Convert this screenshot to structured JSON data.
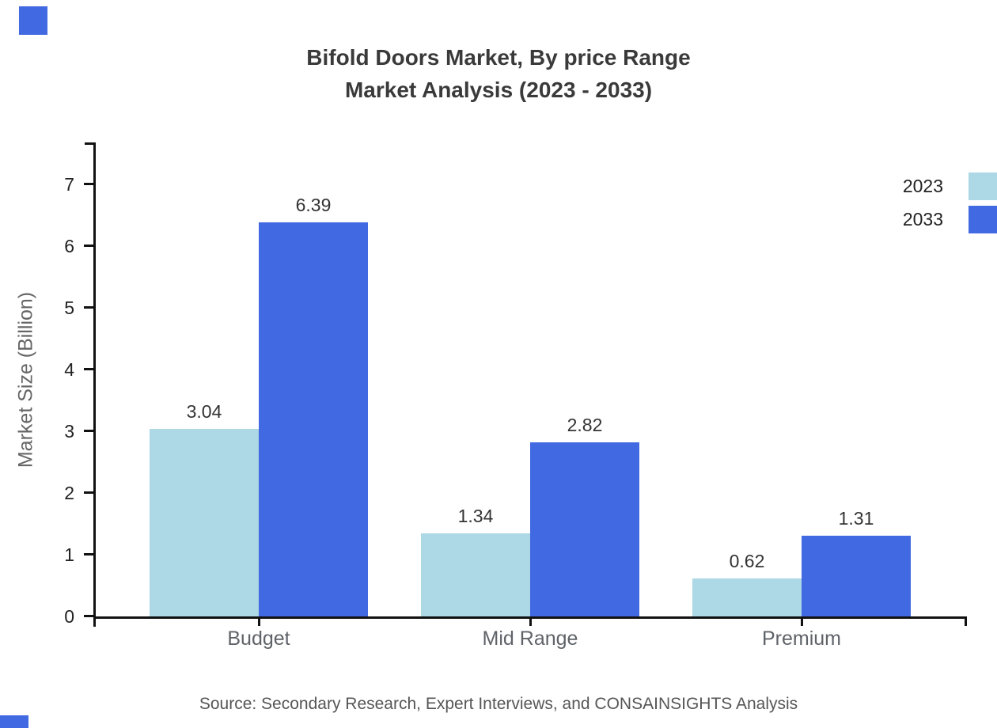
{
  "title": {
    "line1": "Bifold Doors Market, By price Range",
    "line2": "Market Analysis (2023 - 2033)"
  },
  "source": "Source: Secondary Research, Expert Interviews, and CONSAINSIGHTS Analysis",
  "colors": {
    "accent_blue": "#4169E1",
    "light_blue": "#ADD8E6",
    "axis_line": "#111111",
    "title_text": "#3a3a3a",
    "muted_text": "#5f6368"
  },
  "chart_data": {
    "type": "bar",
    "title": "Bifold Doors Market, By price Range Market Analysis (2023 - 2033)",
    "categories": [
      "Budget",
      "Mid Range",
      "Premium"
    ],
    "series": [
      {
        "name": "2023",
        "color": "#ADD8E6",
        "values": [
          3.04,
          1.34,
          0.62
        ]
      },
      {
        "name": "2033",
        "color": "#4169E1",
        "values": [
          6.39,
          2.82,
          1.31
        ]
      }
    ],
    "xlabel": "",
    "ylabel": "Market Size (Billion)",
    "ylim": [
      0,
      7.7
    ],
    "y_ticks": [
      0,
      1,
      2,
      3,
      4,
      5,
      6,
      7
    ],
    "grid": false,
    "legend_position": "top-right",
    "value_labels": true,
    "value_label_format": "0.00"
  }
}
